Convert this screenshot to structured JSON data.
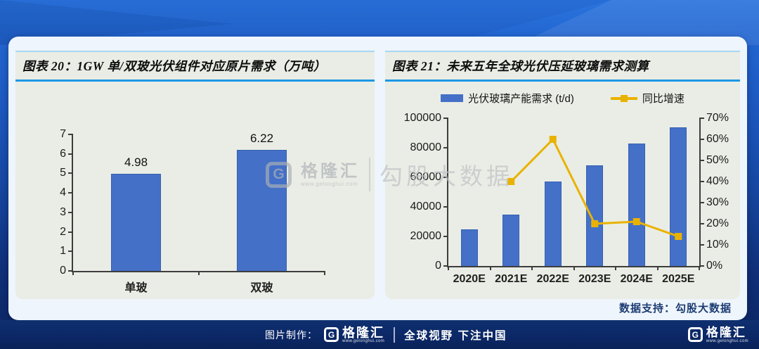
{
  "page": {
    "card": {
      "data_support": "数据支持：勾股大数据"
    },
    "watermark": {
      "logo_letter": "G",
      "brand": "格隆汇",
      "url": "www.gelonghui.com",
      "partner": "勾股大数据"
    },
    "footer": {
      "made_by": "图片制作：",
      "logo_letter": "G",
      "brand": "格隆汇",
      "brand_url": "www.gelonghui.com",
      "slogan": "全球视野 下注中国",
      "right_logo_letter": "G",
      "right_brand": "格隆汇",
      "right_brand_url": "www.gelonghui.com"
    },
    "colors": {
      "bar_blue": "#4470c8",
      "line_gold": "#e9b200",
      "title_underline": "#1b98e5",
      "panel_bg": "#eaede5",
      "card_bg": "#eef5fc"
    }
  },
  "chart_data": [
    {
      "type": "bar",
      "title": "图表 20：1GW 单/双玻光伏组件对应原片需求（万吨）",
      "categories": [
        "单玻",
        "双玻"
      ],
      "values": [
        4.98,
        6.22
      ],
      "data_labels": [
        "4.98",
        "6.22"
      ],
      "xlabel": "",
      "ylabel": "",
      "ylim": [
        0,
        7
      ],
      "ystep": 1,
      "grid": false,
      "legend_position": "none",
      "bar_color": "#4470c8"
    },
    {
      "type": "bar+line",
      "title": "图表 21：未来五年全球光伏压延玻璃需求测算",
      "categories": [
        "2020E",
        "2021E",
        "2022E",
        "2023E",
        "2024E",
        "2025E"
      ],
      "series": [
        {
          "name": "光伏玻璃产能需求 (t/d)",
          "type": "bar",
          "axis": "left",
          "color": "#4470c8",
          "values": [
            25000,
            35000,
            57000,
            68000,
            83000,
            94000
          ]
        },
        {
          "name": "同比增速",
          "type": "line",
          "axis": "right",
          "color": "#e9b200",
          "values": [
            null,
            40,
            60,
            20,
            21,
            14
          ]
        }
      ],
      "left_axis": {
        "min": 0,
        "max": 100000,
        "step": 20000,
        "suffix": ""
      },
      "right_axis": {
        "min": 0,
        "max": 70,
        "step": 10,
        "suffix": "%"
      },
      "grid": false,
      "legend_position": "top"
    }
  ]
}
